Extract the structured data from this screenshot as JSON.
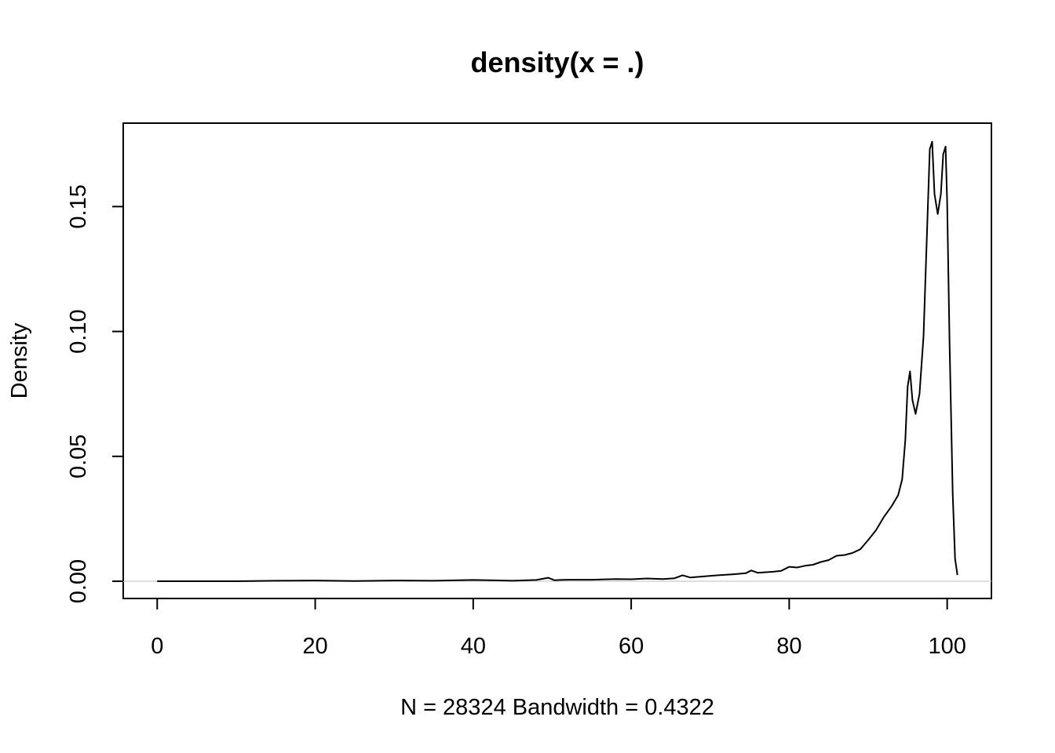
{
  "chart_data": {
    "type": "line",
    "title": "density(x = .)",
    "xlabel": "N = 28324   Bandwidth = 0.4322",
    "ylabel": "Density",
    "xlim": [
      -4.3,
      105.6
    ],
    "ylim": [
      -0.0069,
      0.1834
    ],
    "x_ticks": [
      0,
      20,
      40,
      60,
      80,
      100
    ],
    "x_tick_labels": [
      "0",
      "20",
      "40",
      "60",
      "80",
      "100"
    ],
    "y_ticks": [
      0.0,
      0.05,
      0.1,
      0.15
    ],
    "y_tick_labels": [
      "0.00",
      "0.05",
      "0.10",
      "0.15"
    ],
    "zero_line": true,
    "grid": false,
    "legend": "none",
    "line_color": "#000000",
    "zero_line_color": "#d3d3d3",
    "series": [
      {
        "x": [
          0,
          5,
          10,
          15,
          20,
          25,
          30,
          35,
          40,
          45,
          48,
          49.5,
          50.3,
          51,
          52,
          55,
          58,
          60,
          62,
          64,
          65.5,
          66.5,
          67.5,
          69,
          71,
          73,
          74.5,
          75.2,
          76,
          78,
          79,
          80,
          81,
          82,
          83,
          84,
          85,
          86,
          87,
          88,
          89,
          90,
          91,
          92,
          93,
          93.8,
          94.3,
          94.7,
          95,
          95.3,
          95.6,
          96,
          96.5,
          97,
          97.5,
          97.8,
          98.1,
          98.4,
          98.8,
          99.2,
          99.5,
          99.8,
          100,
          100.3,
          100.7,
          101,
          101.3
        ],
        "y": [
          0.0,
          0.0,
          0.0,
          0.0002,
          0.0003,
          0.0001,
          0.0003,
          0.0002,
          0.0005,
          0.0002,
          0.0005,
          0.0014,
          0.0004,
          0.0005,
          0.0006,
          0.0006,
          0.0009,
          0.0008,
          0.0011,
          0.0009,
          0.0012,
          0.0024,
          0.0015,
          0.0019,
          0.0024,
          0.0028,
          0.0032,
          0.0043,
          0.0034,
          0.0038,
          0.0042,
          0.0058,
          0.0055,
          0.0062,
          0.0066,
          0.0077,
          0.0085,
          0.0102,
          0.0105,
          0.0113,
          0.0128,
          0.0165,
          0.0205,
          0.0258,
          0.0302,
          0.0345,
          0.0408,
          0.0565,
          0.078,
          0.084,
          0.0725,
          0.067,
          0.075,
          0.098,
          0.145,
          0.173,
          0.176,
          0.155,
          0.147,
          0.155,
          0.171,
          0.174,
          0.152,
          0.095,
          0.035,
          0.009,
          0.0025
        ]
      }
    ]
  }
}
